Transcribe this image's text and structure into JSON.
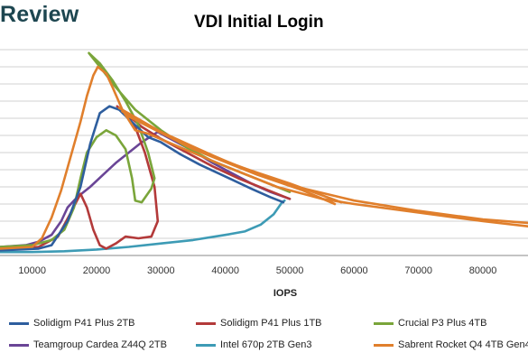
{
  "brand": "Review",
  "chart_data": {
    "type": "line",
    "title": "VDI Initial Login",
    "xlabel": "IOPS",
    "ylabel": "",
    "xlim": [
      5000,
      87000
    ],
    "ylim": [
      0,
      12
    ],
    "xticks": [
      10000,
      20000,
      30000,
      40000,
      50000,
      60000,
      70000,
      80000
    ],
    "xtick_labels": [
      "10000",
      "20000",
      "30000",
      "40000",
      "50000",
      "60000",
      "70000",
      "80000"
    ],
    "grid": true,
    "legend_position": "bottom",
    "series": [
      {
        "name": "Solidigm P41 Plus 2TB",
        "color": "#2e5e9e",
        "points": [
          [
            5000,
            0.3
          ],
          [
            11000,
            0.4
          ],
          [
            13000,
            0.6
          ],
          [
            15500,
            2.0
          ],
          [
            17500,
            4.0
          ],
          [
            19000,
            6.5
          ],
          [
            20500,
            8.3
          ],
          [
            22000,
            8.7
          ],
          [
            23500,
            8.5
          ],
          [
            26000,
            7.6
          ],
          [
            28000,
            6.9
          ],
          [
            30000,
            6.6
          ],
          [
            33000,
            5.9
          ],
          [
            36000,
            5.3
          ],
          [
            40000,
            4.6
          ],
          [
            44000,
            3.9
          ],
          [
            47000,
            3.4
          ],
          [
            49000,
            3.1
          ]
        ]
      },
      {
        "name": "Solidigm P41 Plus 1TB",
        "color": "#b33a3a",
        "points": [
          [
            5000,
            0.4
          ],
          [
            11000,
            0.5
          ],
          [
            14000,
            1.1
          ],
          [
            16000,
            2.5
          ],
          [
            17500,
            3.6
          ],
          [
            18500,
            2.8
          ],
          [
            19500,
            1.5
          ],
          [
            20500,
            0.6
          ],
          [
            21500,
            0.4
          ],
          [
            23000,
            0.7
          ],
          [
            24500,
            1.1
          ],
          [
            26500,
            1.0
          ],
          [
            28500,
            1.1
          ],
          [
            29500,
            2.0
          ],
          [
            29000,
            4.0
          ],
          [
            27500,
            6.0
          ],
          [
            26000,
            7.5
          ],
          [
            24500,
            8.3
          ],
          [
            23200,
            8.7
          ],
          [
            24500,
            8.3
          ],
          [
            27000,
            7.5
          ],
          [
            30000,
            6.8
          ],
          [
            34000,
            6.0
          ],
          [
            38000,
            5.2
          ],
          [
            42000,
            4.5
          ],
          [
            46000,
            3.9
          ],
          [
            50000,
            3.3
          ]
        ]
      },
      {
        "name": "Crucial P3 Plus 4TB",
        "color": "#7aa53a",
        "points": [
          [
            5000,
            0.5
          ],
          [
            10000,
            0.6
          ],
          [
            13000,
            0.9
          ],
          [
            15000,
            1.5
          ],
          [
            16500,
            2.8
          ],
          [
            17500,
            4.5
          ],
          [
            18500,
            6.0
          ],
          [
            20000,
            6.9
          ],
          [
            21500,
            7.3
          ],
          [
            23000,
            7.0
          ],
          [
            24500,
            6.2
          ],
          [
            25500,
            4.5
          ],
          [
            26000,
            3.2
          ],
          [
            27000,
            3.1
          ],
          [
            28500,
            3.9
          ],
          [
            29000,
            4.5
          ],
          [
            28000,
            6.0
          ],
          [
            26500,
            7.6
          ],
          [
            24500,
            9.0
          ],
          [
            22500,
            10.2
          ],
          [
            20500,
            11.2
          ],
          [
            18800,
            11.8
          ],
          [
            20500,
            11.0
          ],
          [
            23000,
            9.8
          ],
          [
            26000,
            8.5
          ],
          [
            30000,
            7.3
          ],
          [
            34000,
            6.3
          ],
          [
            38000,
            5.5
          ],
          [
            42000,
            4.9
          ],
          [
            46000,
            4.3
          ],
          [
            50000,
            3.7
          ]
        ]
      },
      {
        "name": "Teamgroup Cardea Z44Q 2TB",
        "color": "#6a4596",
        "points": [
          [
            5000,
            0.5
          ],
          [
            9000,
            0.6
          ],
          [
            11000,
            0.8
          ],
          [
            13000,
            1.2
          ],
          [
            14500,
            2.0
          ],
          [
            15500,
            2.8
          ],
          [
            17000,
            3.4
          ],
          [
            19000,
            4.0
          ],
          [
            21000,
            4.7
          ],
          [
            23000,
            5.4
          ],
          [
            25000,
            6.0
          ],
          [
            27000,
            6.6
          ],
          [
            29500,
            7.2
          ],
          [
            32000,
            6.7
          ],
          [
            35000,
            6.1
          ],
          [
            38000,
            5.4
          ],
          [
            41000,
            4.8
          ],
          [
            44000,
            4.2
          ],
          [
            47000,
            3.7
          ],
          [
            50000,
            3.3
          ]
        ]
      },
      {
        "name": "Intel 670p 2TB Gen3",
        "color": "#3d9bb5",
        "points": [
          [
            5000,
            0.2
          ],
          [
            10000,
            0.2
          ],
          [
            15000,
            0.25
          ],
          [
            20000,
            0.35
          ],
          [
            25000,
            0.5
          ],
          [
            30000,
            0.7
          ],
          [
            35000,
            0.9
          ],
          [
            40000,
            1.2
          ],
          [
            43000,
            1.4
          ],
          [
            45500,
            1.8
          ],
          [
            47500,
            2.4
          ],
          [
            48800,
            3.1
          ],
          [
            49200,
            3.2
          ]
        ]
      },
      {
        "name": "Sabrent Rocket Q4 4TB Gen4",
        "color": "#e07f2c",
        "points": [
          [
            5000,
            0.4
          ],
          [
            10000,
            0.5
          ],
          [
            11500,
            1.0
          ],
          [
            13000,
            2.2
          ],
          [
            14500,
            3.8
          ],
          [
            16000,
            5.8
          ],
          [
            17500,
            7.8
          ],
          [
            18500,
            9.3
          ],
          [
            19500,
            10.5
          ],
          [
            20200,
            11.0
          ],
          [
            21500,
            10.6
          ],
          [
            22500,
            9.8
          ],
          [
            24000,
            8.5
          ],
          [
            26000,
            7.3
          ],
          [
            28000,
            7.1
          ],
          [
            33000,
            6.3
          ],
          [
            40000,
            5.2
          ],
          [
            48000,
            4.0
          ],
          [
            55000,
            3.3
          ],
          [
            60000,
            3.0
          ],
          [
            70000,
            2.5
          ],
          [
            80000,
            2.0
          ],
          [
            87000,
            1.7
          ]
        ],
        "extra_lines": [
          [
            [
              23500,
              8.6
            ],
            [
              30000,
              7.2
            ],
            [
              40000,
              5.5
            ],
            [
              50000,
              4.1
            ],
            [
              60000,
              3.2
            ],
            [
              70000,
              2.6
            ],
            [
              80000,
              2.1
            ],
            [
              87000,
              1.9
            ]
          ],
          [
            [
              24000,
              8.4
            ],
            [
              32000,
              6.8
            ],
            [
              42000,
              5.2
            ],
            [
              50000,
              4.2
            ],
            [
              58000,
              3.1
            ]
          ],
          [
            [
              24500,
              8.2
            ],
            [
              35000,
              6.2
            ],
            [
              45000,
              4.7
            ],
            [
              52000,
              3.8
            ],
            [
              57000,
              3.0
            ]
          ]
        ]
      }
    ]
  }
}
